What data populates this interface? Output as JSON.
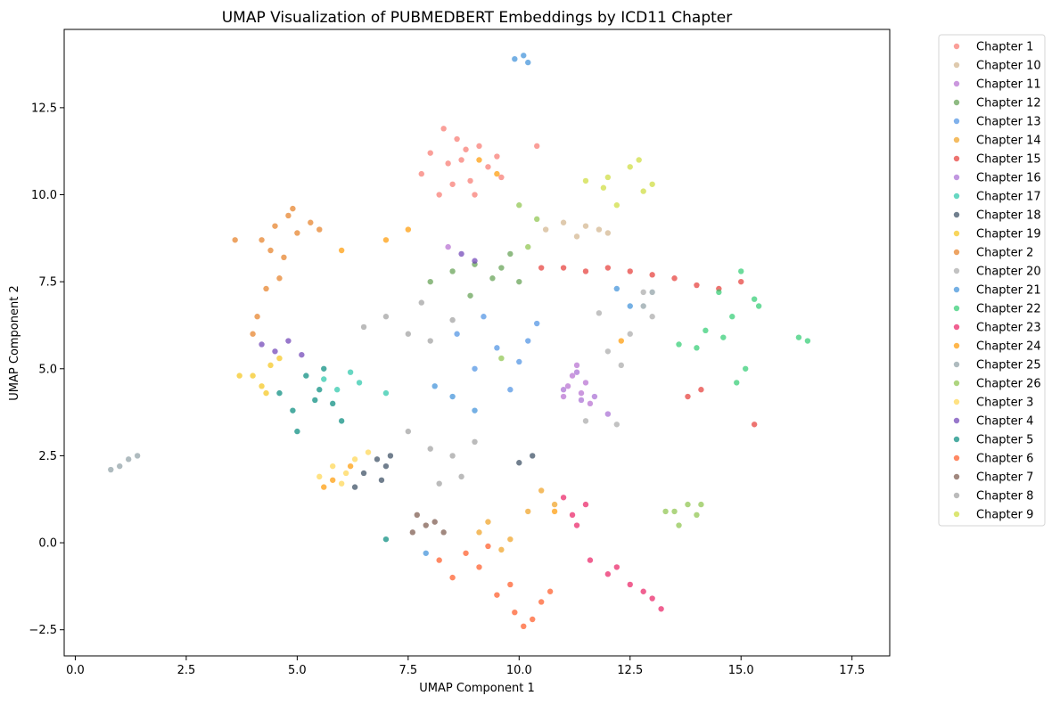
{
  "chart_data": {
    "type": "scatter",
    "title": "UMAP Visualization of PUBMEDBERT Embeddings by ICD11 Chapter",
    "xlabel": "UMAP Component 1",
    "ylabel": "UMAP Component 2",
    "xlim": [
      -0.25,
      18.35
    ],
    "ylim": [
      -3.25,
      14.75
    ],
    "xticks": [
      0.0,
      2.5,
      5.0,
      7.5,
      10.0,
      12.5,
      15.0,
      17.5
    ],
    "xtick_labels": [
      "0.0",
      "2.5",
      "5.0",
      "7.5",
      "10.0",
      "12.5",
      "15.0",
      "17.5"
    ],
    "yticks": [
      -2.5,
      0.0,
      2.5,
      5.0,
      7.5,
      10.0,
      12.5
    ],
    "ytick_labels": [
      "−2.5",
      "0.0",
      "2.5",
      "5.0",
      "7.5",
      "10.0",
      "12.5"
    ],
    "grid": false,
    "legend_position": "outside-right",
    "series": [
      {
        "name": "Chapter 1",
        "color": "#f8766d",
        "points": [
          [
            7.8,
            10.6
          ],
          [
            8.0,
            11.2
          ],
          [
            8.3,
            11.9
          ],
          [
            8.5,
            10.3
          ],
          [
            8.7,
            11.0
          ],
          [
            8.9,
            10.4
          ],
          [
            9.1,
            11.4
          ],
          [
            9.3,
            10.8
          ],
          [
            9.5,
            11.1
          ],
          [
            8.6,
            11.6
          ],
          [
            8.2,
            10.0
          ],
          [
            9.0,
            10.0
          ],
          [
            8.4,
            10.9
          ],
          [
            9.6,
            10.5
          ],
          [
            10.4,
            11.4
          ],
          [
            8.8,
            11.3
          ]
        ]
      },
      {
        "name": "Chapter 10",
        "color": "#d2b48c",
        "points": [
          [
            11.0,
            9.2
          ],
          [
            11.5,
            9.1
          ],
          [
            12.0,
            8.9
          ],
          [
            10.6,
            9.0
          ],
          [
            11.3,
            8.8
          ],
          [
            11.8,
            9.0
          ]
        ]
      },
      {
        "name": "Chapter 11",
        "color": "#b56cd0",
        "points": [
          [
            11.2,
            4.8
          ],
          [
            11.4,
            4.3
          ],
          [
            11.1,
            4.5
          ],
          [
            11.6,
            4.0
          ],
          [
            11.3,
            5.1
          ],
          [
            11.5,
            4.6
          ],
          [
            8.4,
            8.5
          ],
          [
            11.0,
            4.2
          ]
        ]
      },
      {
        "name": "Chapter 12",
        "color": "#5f9e4f",
        "points": [
          [
            8.0,
            7.5
          ],
          [
            8.5,
            7.8
          ],
          [
            9.0,
            8.0
          ],
          [
            9.4,
            7.6
          ],
          [
            10.0,
            7.5
          ],
          [
            9.8,
            8.3
          ],
          [
            8.9,
            7.1
          ],
          [
            9.6,
            7.9
          ]
        ]
      },
      {
        "name": "Chapter 13",
        "color": "#4a90e2",
        "points": [
          [
            9.0,
            5.0
          ],
          [
            9.5,
            5.6
          ],
          [
            10.0,
            5.2
          ],
          [
            10.4,
            6.3
          ],
          [
            9.8,
            4.4
          ],
          [
            10.2,
            5.8
          ],
          [
            8.6,
            6.0
          ],
          [
            9.2,
            6.5
          ]
        ]
      },
      {
        "name": "Chapter 14",
        "color": "#f0a020",
        "points": [
          [
            9.3,
            0.6
          ],
          [
            9.8,
            0.1
          ],
          [
            10.2,
            0.9
          ],
          [
            10.5,
            1.5
          ],
          [
            9.6,
            -0.2
          ],
          [
            10.8,
            1.1
          ],
          [
            9.1,
            0.3
          ]
        ]
      },
      {
        "name": "Chapter 15",
        "color": "#e53935",
        "points": [
          [
            10.5,
            7.9
          ],
          [
            11.0,
            7.9
          ],
          [
            11.5,
            7.8
          ],
          [
            12.0,
            7.9
          ],
          [
            12.5,
            7.8
          ],
          [
            13.0,
            7.7
          ],
          [
            13.5,
            7.6
          ],
          [
            14.0,
            7.4
          ],
          [
            14.5,
            7.3
          ],
          [
            15.0,
            7.5
          ],
          [
            14.1,
            4.4
          ],
          [
            13.8,
            4.2
          ],
          [
            15.3,
            3.4
          ]
        ]
      },
      {
        "name": "Chapter 16",
        "color": "#a66bd3",
        "points": [
          [
            11.3,
            4.9
          ],
          [
            11.0,
            4.4
          ],
          [
            11.7,
            4.2
          ],
          [
            11.4,
            4.1
          ],
          [
            12.0,
            3.7
          ]
        ]
      },
      {
        "name": "Chapter 17",
        "color": "#26c6a8",
        "points": [
          [
            6.4,
            4.6
          ],
          [
            5.9,
            4.4
          ],
          [
            7.0,
            4.3
          ],
          [
            6.2,
            4.9
          ],
          [
            5.6,
            4.7
          ]
        ]
      },
      {
        "name": "Chapter 18",
        "color": "#34495e",
        "points": [
          [
            6.5,
            2.0
          ],
          [
            6.8,
            2.4
          ],
          [
            7.0,
            2.2
          ],
          [
            6.3,
            1.6
          ],
          [
            6.9,
            1.8
          ],
          [
            7.1,
            2.5
          ],
          [
            10.0,
            2.3
          ],
          [
            10.3,
            2.5
          ]
        ]
      },
      {
        "name": "Chapter 19",
        "color": "#f5c518",
        "points": [
          [
            4.0,
            4.8
          ],
          [
            4.2,
            4.5
          ],
          [
            4.4,
            5.1
          ],
          [
            3.7,
            4.8
          ],
          [
            4.3,
            4.3
          ],
          [
            4.6,
            5.3
          ]
        ]
      },
      {
        "name": "Chapter 2",
        "color": "#e67e22",
        "points": [
          [
            4.2,
            8.7
          ],
          [
            4.5,
            9.1
          ],
          [
            4.8,
            9.4
          ],
          [
            5.0,
            8.9
          ],
          [
            4.4,
            8.4
          ],
          [
            5.3,
            9.2
          ],
          [
            4.7,
            8.2
          ],
          [
            3.6,
            8.7
          ],
          [
            4.1,
            6.5
          ],
          [
            4.3,
            7.3
          ],
          [
            4.0,
            6.0
          ],
          [
            4.6,
            7.6
          ],
          [
            5.5,
            9.0
          ],
          [
            4.9,
            9.6
          ]
        ]
      },
      {
        "name": "Chapter 20",
        "color": "#a8a8a8",
        "points": [
          [
            12.5,
            6.0
          ],
          [
            12.0,
            5.5
          ],
          [
            11.8,
            6.6
          ],
          [
            12.3,
            5.1
          ],
          [
            13.0,
            6.5
          ],
          [
            12.8,
            7.2
          ],
          [
            11.5,
            3.5
          ],
          [
            12.2,
            3.4
          ]
        ]
      },
      {
        "name": "Chapter 21",
        "color": "#3a8fd8",
        "points": [
          [
            10.1,
            14.0
          ],
          [
            9.9,
            13.9
          ],
          [
            10.2,
            13.8
          ],
          [
            8.5,
            4.2
          ],
          [
            9.0,
            3.8
          ],
          [
            8.1,
            4.5
          ],
          [
            12.2,
            7.3
          ],
          [
            12.5,
            6.8
          ],
          [
            7.9,
            -0.3
          ]
        ]
      },
      {
        "name": "Chapter 22",
        "color": "#2ecc71",
        "points": [
          [
            14.5,
            7.2
          ],
          [
            15.0,
            7.8
          ],
          [
            14.8,
            6.5
          ],
          [
            15.3,
            7.0
          ],
          [
            14.0,
            5.6
          ],
          [
            14.6,
            5.9
          ],
          [
            15.1,
            5.0
          ],
          [
            14.9,
            4.6
          ],
          [
            13.6,
            5.7
          ],
          [
            15.4,
            6.8
          ],
          [
            14.2,
            6.1
          ],
          [
            16.5,
            5.8
          ],
          [
            16.3,
            5.9
          ]
        ]
      },
      {
        "name": "Chapter 23",
        "color": "#e91e63",
        "points": [
          [
            11.0,
            1.3
          ],
          [
            11.5,
            1.1
          ],
          [
            11.2,
            0.8
          ],
          [
            12.0,
            -0.9
          ],
          [
            12.5,
            -1.2
          ],
          [
            12.2,
            -0.7
          ],
          [
            13.0,
            -1.6
          ],
          [
            13.2,
            -1.9
          ],
          [
            11.6,
            -0.5
          ],
          [
            12.8,
            -1.4
          ],
          [
            11.3,
            0.5
          ]
        ]
      },
      {
        "name": "Chapter 24",
        "color": "#ff9800",
        "points": [
          [
            6.0,
            8.4
          ],
          [
            7.0,
            8.7
          ],
          [
            7.5,
            9.0
          ],
          [
            5.8,
            1.8
          ],
          [
            6.2,
            2.2
          ],
          [
            5.6,
            1.6
          ],
          [
            9.1,
            11.0
          ],
          [
            9.5,
            10.6
          ],
          [
            12.3,
            5.8
          ],
          [
            10.8,
            0.9
          ]
        ]
      },
      {
        "name": "Chapter 25",
        "color": "#8d9ea4",
        "points": [
          [
            1.0,
            2.2
          ],
          [
            1.2,
            2.4
          ],
          [
            0.8,
            2.1
          ],
          [
            1.4,
            2.5
          ],
          [
            13.0,
            7.2
          ],
          [
            12.8,
            6.8
          ]
        ]
      },
      {
        "name": "Chapter 26",
        "color": "#8bc34a",
        "points": [
          [
            13.5,
            0.9
          ],
          [
            13.8,
            1.1
          ],
          [
            14.0,
            0.8
          ],
          [
            13.6,
            0.5
          ],
          [
            13.3,
            0.9
          ],
          [
            14.1,
            1.1
          ],
          [
            10.2,
            8.5
          ],
          [
            10.4,
            9.3
          ],
          [
            10.0,
            9.7
          ],
          [
            9.6,
            5.3
          ]
        ]
      },
      {
        "name": "Chapter 3",
        "color": "#ffd54f",
        "points": [
          [
            5.8,
            2.2
          ],
          [
            6.0,
            1.7
          ],
          [
            6.3,
            2.4
          ],
          [
            5.5,
            1.9
          ],
          [
            6.6,
            2.6
          ],
          [
            6.1,
            2.0
          ]
        ]
      },
      {
        "name": "Chapter 4",
        "color": "#6c3fb5",
        "points": [
          [
            4.5,
            5.5
          ],
          [
            4.8,
            5.8
          ],
          [
            4.2,
            5.7
          ],
          [
            5.1,
            5.4
          ],
          [
            8.7,
            8.3
          ],
          [
            9.0,
            8.1
          ]
        ]
      },
      {
        "name": "Chapter 5",
        "color": "#00897b",
        "points": [
          [
            5.2,
            4.8
          ],
          [
            5.5,
            4.4
          ],
          [
            5.8,
            4.0
          ],
          [
            4.9,
            3.8
          ],
          [
            5.0,
            3.2
          ],
          [
            5.4,
            4.1
          ],
          [
            5.6,
            5.0
          ],
          [
            6.0,
            3.5
          ],
          [
            4.6,
            4.3
          ],
          [
            7.0,
            0.1
          ]
        ]
      },
      {
        "name": "Chapter 6",
        "color": "#ff5722",
        "points": [
          [
            9.5,
            -1.5
          ],
          [
            9.9,
            -2.0
          ],
          [
            10.3,
            -2.2
          ],
          [
            10.5,
            -1.7
          ],
          [
            8.5,
            -1.0
          ],
          [
            8.8,
            -0.3
          ],
          [
            9.1,
            -0.7
          ],
          [
            9.8,
            -1.2
          ],
          [
            10.1,
            -2.4
          ],
          [
            8.2,
            -0.5
          ],
          [
            9.3,
            -0.1
          ],
          [
            10.7,
            -1.4
          ]
        ]
      },
      {
        "name": "Chapter 7",
        "color": "#795548",
        "points": [
          [
            7.7,
            0.8
          ],
          [
            7.9,
            0.5
          ],
          [
            7.6,
            0.3
          ],
          [
            8.1,
            0.6
          ],
          [
            8.3,
            0.3
          ]
        ]
      },
      {
        "name": "Chapter 8",
        "color": "#9e9e9e",
        "points": [
          [
            7.5,
            3.2
          ],
          [
            8.0,
            2.7
          ],
          [
            8.5,
            2.5
          ],
          [
            9.0,
            2.9
          ],
          [
            8.2,
            1.7
          ],
          [
            8.7,
            1.9
          ],
          [
            7.0,
            6.5
          ],
          [
            6.5,
            6.2
          ],
          [
            7.5,
            6.0
          ],
          [
            8.0,
            5.8
          ],
          [
            7.8,
            6.9
          ],
          [
            8.5,
            6.4
          ]
        ]
      },
      {
        "name": "Chapter 9",
        "color": "#cddc39",
        "points": [
          [
            12.0,
            10.5
          ],
          [
            12.5,
            10.8
          ],
          [
            12.8,
            10.1
          ],
          [
            11.5,
            10.4
          ],
          [
            12.2,
            9.7
          ],
          [
            13.0,
            10.3
          ],
          [
            12.7,
            11.0
          ],
          [
            11.9,
            10.2
          ]
        ]
      }
    ]
  }
}
